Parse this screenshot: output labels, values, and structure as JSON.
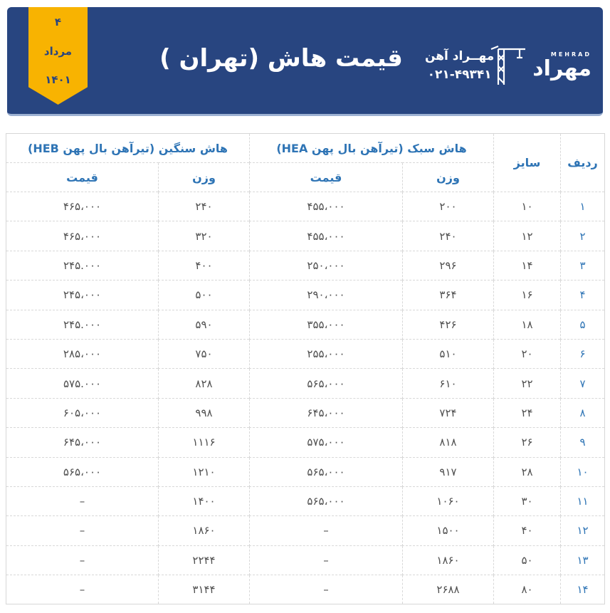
{
  "header": {
    "ribbon": {
      "day": "۴",
      "month": "مرداد",
      "year": "۱۴۰۱"
    },
    "title": "قیمت هاش (تهران )",
    "brand": {
      "name_fa": "مهــراد آهن",
      "phone": "۰۲۱-۴۹۳۴۱",
      "logo_text_en": "MEHRAD",
      "logo_text_fa": "مهراد"
    }
  },
  "colors": {
    "header_bg": "#284580",
    "ribbon_yellow": "#f8b301",
    "header_text": "#ffffff",
    "table_head_blue": "#2e74b5",
    "data_gray": "#4f4f4f",
    "border_gray": "#d8d8d8"
  },
  "table": {
    "col_radif": "ردیف",
    "col_size": "سایز",
    "group_hea": "هاش سبک (تیرآهن بال پهن HEA)",
    "group_heb": "هاش سنگین (تیرآهن بال پهن HEB)",
    "col_weight": "وزن",
    "col_price": "قیمت",
    "rows": [
      {
        "radif": "۱",
        "size": "۱۰",
        "hea_w": "۲۰۰",
        "hea_p": "۴۵۵،۰۰۰",
        "heb_w": "۲۴۰",
        "heb_p": "۴۶۵،۰۰۰"
      },
      {
        "radif": "۲",
        "size": "۱۲",
        "hea_w": "۲۴۰",
        "hea_p": "۴۵۵،۰۰۰",
        "heb_w": "۳۲۰",
        "heb_p": "۴۶۵،۰۰۰"
      },
      {
        "radif": "۳",
        "size": "۱۴",
        "hea_w": "۲۹۶",
        "hea_p": "۲۵۰،۰۰۰",
        "heb_w": "۴۰۰",
        "heb_p": "۲۴۵.۰۰۰"
      },
      {
        "radif": "۴",
        "size": "۱۶",
        "hea_w": "۳۶۴",
        "hea_p": "۲۹۰،۰۰۰",
        "heb_w": "۵۰۰",
        "heb_p": "۲۴۵،۰۰۰"
      },
      {
        "radif": "۵",
        "size": "۱۸",
        "hea_w": "۴۲۶",
        "hea_p": "۳۵۵،۰۰۰",
        "heb_w": "۵۹۰",
        "heb_p": "۲۴۵.۰۰۰"
      },
      {
        "radif": "۶",
        "size": "۲۰",
        "hea_w": "۵۱۰",
        "hea_p": "۲۵۵،۰۰۰",
        "heb_w": "۷۵۰",
        "heb_p": "۲۸۵،۰۰۰"
      },
      {
        "radif": "۷",
        "size": "۲۲",
        "hea_w": "۶۱۰",
        "hea_p": "۵۶۵،۰۰۰",
        "heb_w": "۸۲۸",
        "heb_p": "۵۷۵.۰۰۰"
      },
      {
        "radif": "۸",
        "size": "۲۴",
        "hea_w": "۷۲۴",
        "hea_p": "۶۴۵،۰۰۰",
        "heb_w": "۹۹۸",
        "heb_p": "۶۰۵،۰۰۰"
      },
      {
        "radif": "۹",
        "size": "۲۶",
        "hea_w": "۸۱۸",
        "hea_p": "۵۷۵،۰۰۰",
        "heb_w": "۱۱۱۶",
        "heb_p": "۶۴۵،۰۰۰"
      },
      {
        "radif": "۱۰",
        "size": "۲۸",
        "hea_w": "۹۱۷",
        "hea_p": "۵۶۵،۰۰۰",
        "heb_w": "۱۲۱۰",
        "heb_p": "۵۶۵،۰۰۰"
      },
      {
        "radif": "۱۱",
        "size": "۳۰",
        "hea_w": "۱۰۶۰",
        "hea_p": "۵۶۵،۰۰۰",
        "heb_w": "۱۴۰۰",
        "heb_p": "–"
      },
      {
        "radif": "۱۲",
        "size": "۴۰",
        "hea_w": "۱۵۰۰",
        "hea_p": "–",
        "heb_w": "۱۸۶۰",
        "heb_p": "–"
      },
      {
        "radif": "۱۳",
        "size": "۵۰",
        "hea_w": "۱۸۶۰",
        "hea_p": "–",
        "heb_w": "۲۲۴۴",
        "heb_p": "–"
      },
      {
        "radif": "۱۴",
        "size": "۸۰",
        "hea_w": "۲۶۸۸",
        "hea_p": "–",
        "heb_w": "۳۱۴۴",
        "heb_p": "–"
      }
    ]
  }
}
